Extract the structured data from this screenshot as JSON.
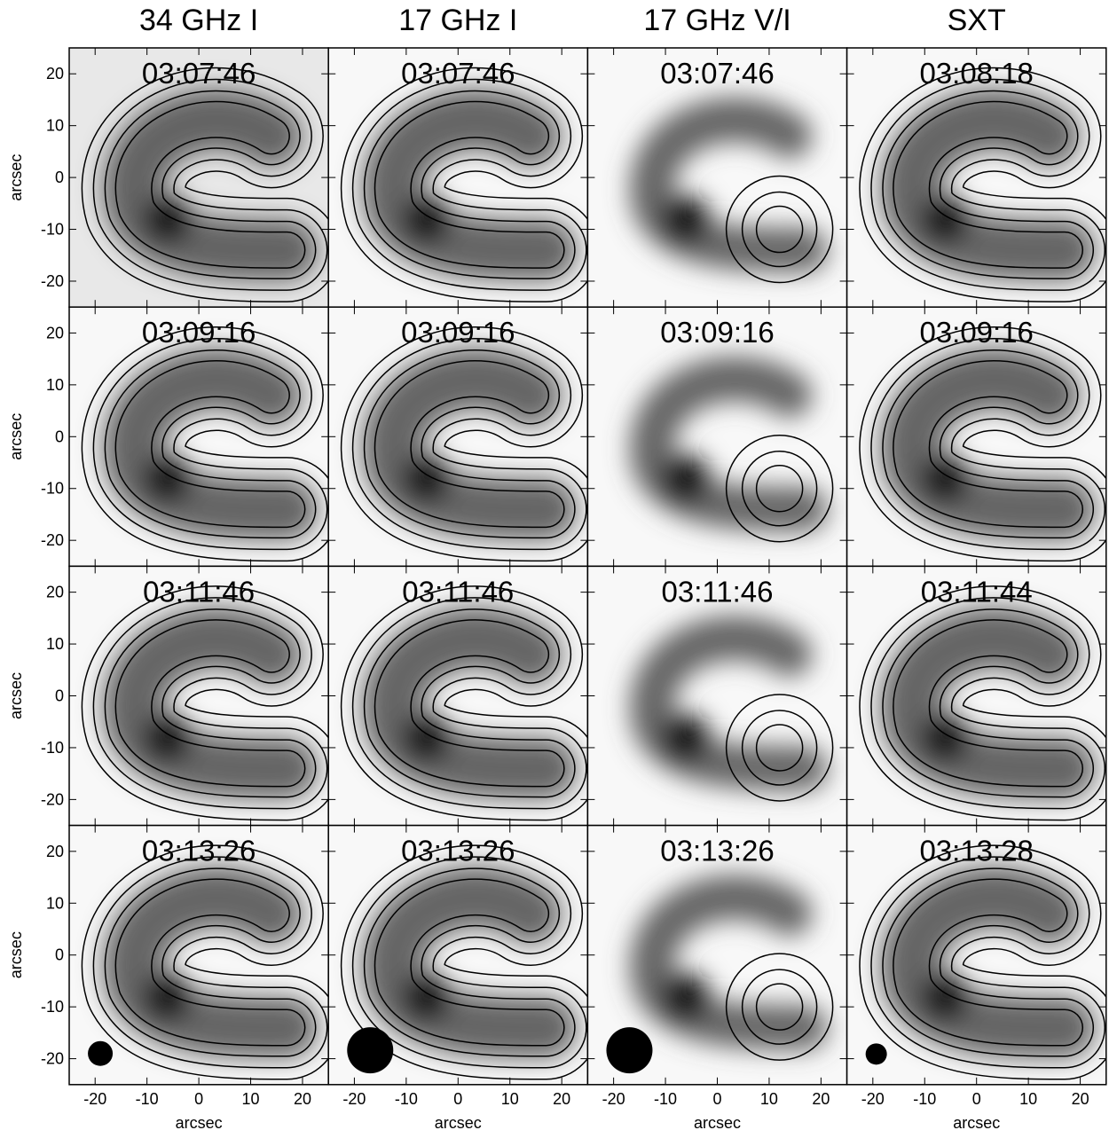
{
  "figure": {
    "column_titles": [
      "34 GHz I",
      "17 GHz I",
      "17 GHz V/I",
      "SXT"
    ],
    "panels": [
      [
        "03:07:46",
        "03:07:46",
        "03:07:46",
        "03:08:18"
      ],
      [
        "03:09:16",
        "03:09:16",
        "03:09:16",
        "03:09:16"
      ],
      [
        "03:11:46",
        "03:11:46",
        "03:11:46",
        "03:11:44"
      ],
      [
        "03:13:26",
        "03:13:26",
        "03:13:26",
        "03:13:28"
      ]
    ],
    "xlabel": "arcsec",
    "ylabel": "arcsec",
    "xlim": [
      -25,
      25
    ],
    "ylim": [
      -25,
      25
    ],
    "xticks": [
      -20,
      -10,
      0,
      10,
      20
    ],
    "yticks": [
      -20,
      -10,
      0,
      10,
      20
    ]
  }
}
